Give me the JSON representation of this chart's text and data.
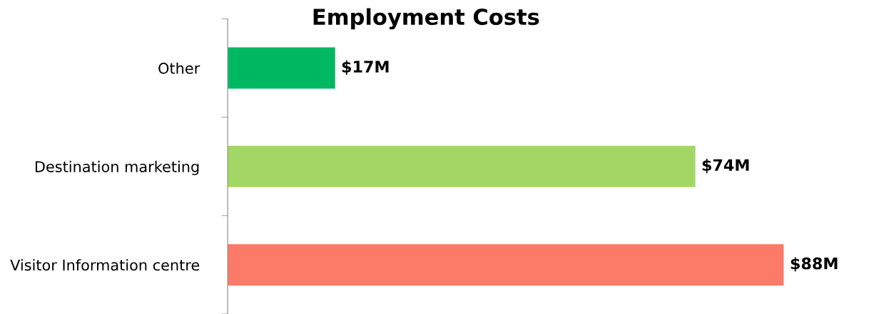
{
  "chart_data": {
    "type": "bar",
    "orientation": "horizontal",
    "title": "Employment Costs",
    "categories": [
      "Other",
      "Destination marketing",
      "Visitor Information centre"
    ],
    "values": [
      17,
      74,
      88
    ],
    "colors": [
      "#00b861",
      "#a2d765",
      "#fc7a68"
    ],
    "value_labels": [
      "$17M",
      "$74M",
      "$88M"
    ],
    "tick_labels": "y",
    "grid": false,
    "legend": false
  }
}
